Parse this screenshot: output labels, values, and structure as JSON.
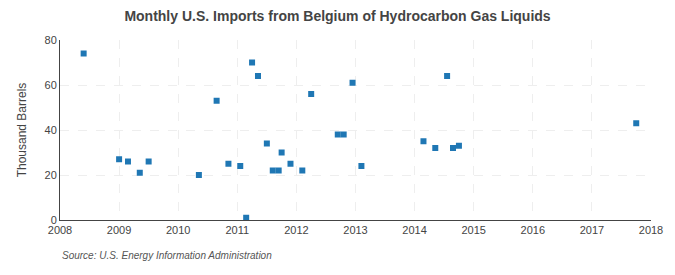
{
  "chart_data": {
    "type": "scatter",
    "title": "Monthly U.S. Imports from Belgium of Hydrocarbon Gas Liquids",
    "ylabel": "Thousand Barrels",
    "source": "Source: U.S. Energy Information Administration",
    "x": [
      2008.4,
      2009.0,
      2009.15,
      2009.35,
      2009.5,
      2010.35,
      2010.65,
      2010.85,
      2011.05,
      2011.15,
      2011.25,
      2011.35,
      2011.5,
      2011.6,
      2011.7,
      2011.75,
      2011.9,
      2012.1,
      2012.25,
      2012.7,
      2012.8,
      2012.95,
      2013.1,
      2014.15,
      2014.35,
      2014.55,
      2014.65,
      2014.75,
      2017.75
    ],
    "values": [
      74,
      27,
      26,
      21,
      26,
      20,
      53,
      25,
      24,
      1,
      70,
      64,
      34,
      22,
      22,
      30,
      25,
      22,
      56,
      38,
      38,
      61,
      24,
      35,
      32,
      64,
      32,
      33,
      43
    ],
    "xlim": [
      2008,
      2018
    ],
    "xticks": [
      2008,
      2009,
      2010,
      2011,
      2012,
      2013,
      2014,
      2015,
      2016,
      2017,
      2018
    ],
    "ylim": [
      0,
      80
    ],
    "yticks": [
      0,
      20,
      40,
      60,
      80
    ],
    "grid": true,
    "marker": "square"
  }
}
